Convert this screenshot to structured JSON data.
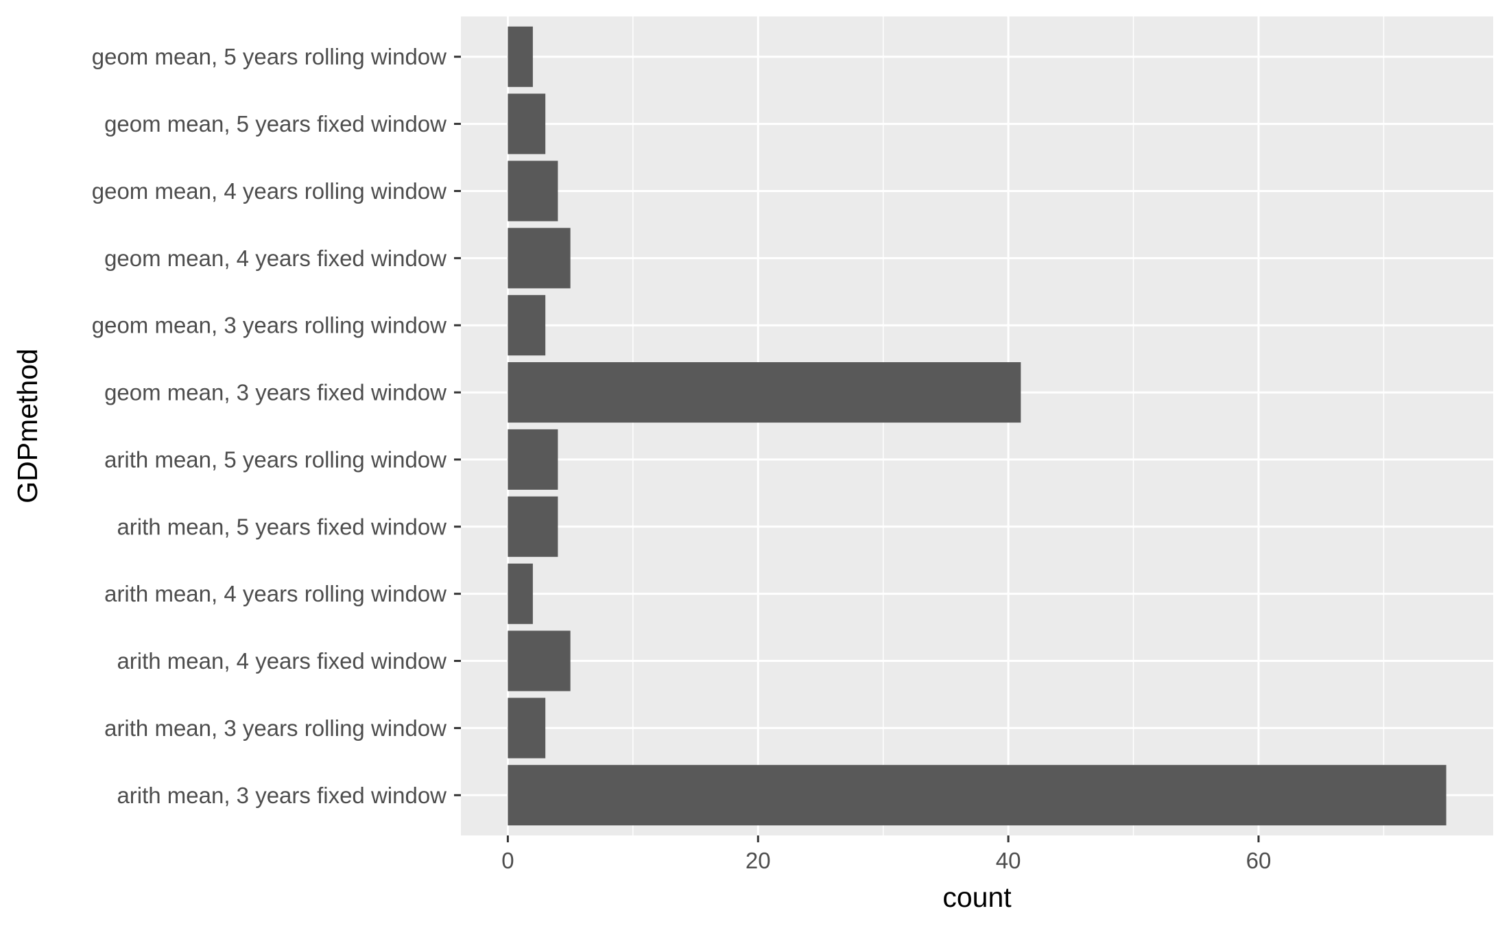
{
  "chart_data": {
    "type": "bar",
    "orientation": "horizontal",
    "title": "",
    "xlabel": "count",
    "ylabel": "GDPmethod",
    "categories": [
      "arith mean, 3 years fixed window",
      "arith mean, 3 years rolling window",
      "arith mean, 4 years fixed window",
      "arith mean, 4 years rolling window",
      "arith mean, 5 years fixed window",
      "arith mean, 5 years rolling window",
      "geom mean, 3 years fixed window",
      "geom mean, 3 years rolling window",
      "geom mean, 4 years fixed window",
      "geom mean, 4 years rolling window",
      "geom mean, 5 years fixed window",
      "geom mean, 5 years rolling window"
    ],
    "values": [
      75,
      3,
      5,
      2,
      4,
      4,
      41,
      3,
      5,
      4,
      3,
      2
    ],
    "xlim": [
      -3.75,
      78.75
    ],
    "xticks": [
      0,
      20,
      40,
      60
    ],
    "xtick_labels": [
      "0",
      "20",
      "40",
      "60"
    ],
    "grid": true,
    "colors": {
      "panel_background": "#ebebeb",
      "grid_major": "#ffffff",
      "bar_fill": "#595959",
      "tick_mark": "#333333",
      "tick_label": "#4d4d4d",
      "axis_title": "#000000"
    }
  }
}
